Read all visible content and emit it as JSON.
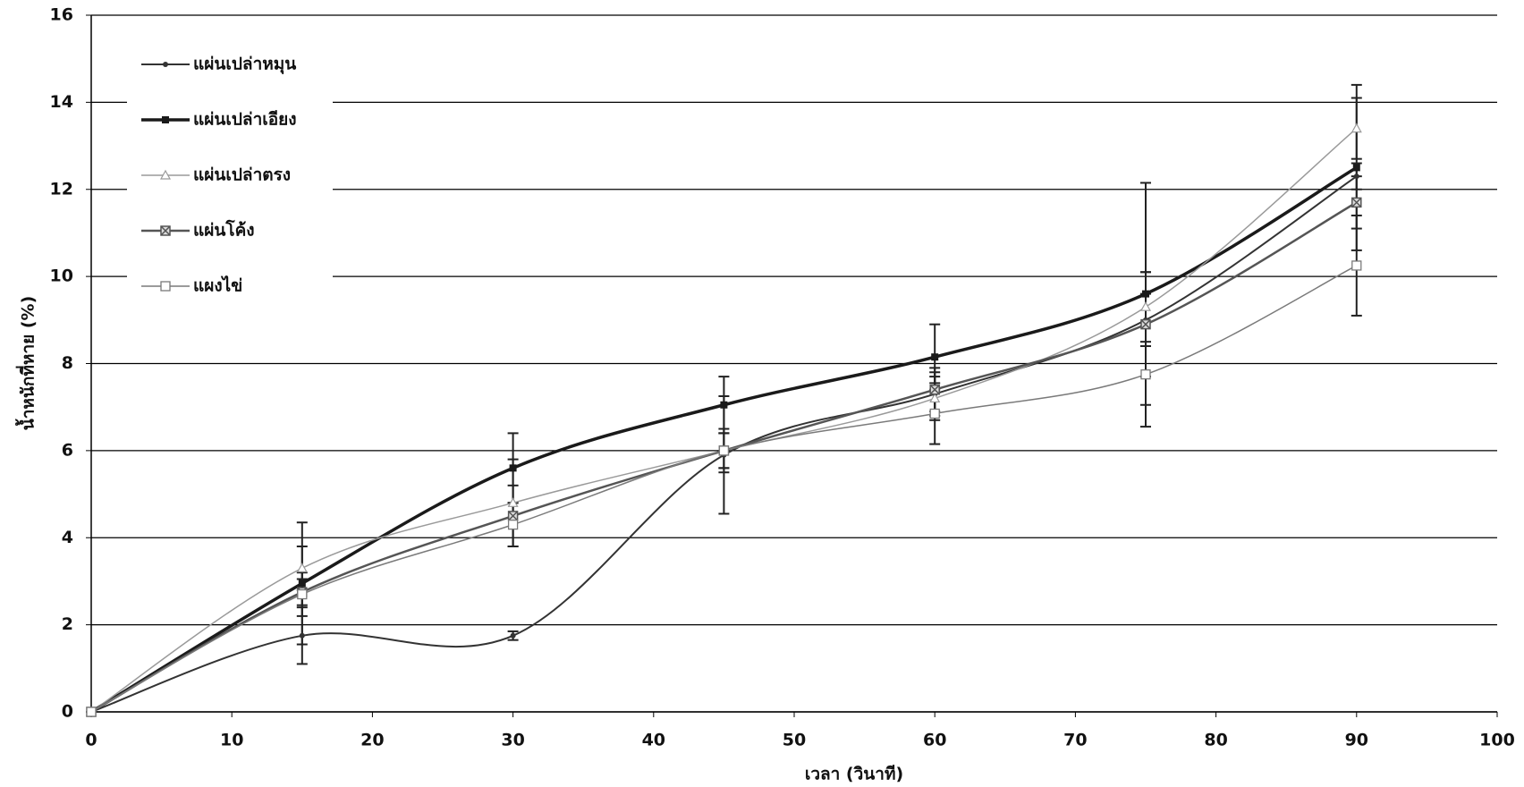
{
  "chart_data": {
    "type": "line",
    "x_label": "เวลา (วินาที)",
    "y_label": "น้ำหนักที่หาย (%)",
    "x": [
      0,
      15,
      30,
      45,
      60,
      75,
      90
    ],
    "xlim": [
      0,
      100
    ],
    "xticks": [
      0,
      10,
      20,
      30,
      40,
      50,
      60,
      70,
      80,
      90,
      100
    ],
    "ylim": [
      0,
      16
    ],
    "yticks": [
      0,
      2,
      4,
      6,
      8,
      10,
      12,
      14,
      16
    ],
    "grid": true,
    "legend": "upper-left",
    "series": [
      {
        "name": "แผ่นเปล่าหมุน",
        "color": "#333333",
        "width": 2,
        "marker": "dot",
        "values": [
          0,
          1.75,
          1.75,
          5.9,
          7.3,
          9.0,
          12.3
        ],
        "errors": [
          0,
          0.65,
          0.1,
          1.35,
          0.5,
          0.6,
          0.3
        ]
      },
      {
        "name": "แผ่นเปล่าเอียง",
        "color": "#1a1a1a",
        "width": 3.5,
        "marker": "square",
        "values": [
          0,
          2.95,
          5.6,
          7.05,
          8.15,
          9.6,
          12.5
        ],
        "errors": [
          0,
          1.4,
          0.8,
          0.65,
          0.75,
          2.55,
          1.9
        ]
      },
      {
        "name": "แผ่นเปล่าตรง",
        "color": "#9a9a9a",
        "width": 1.5,
        "marker": "triangle",
        "values": [
          0,
          3.3,
          4.8,
          6.0,
          7.2,
          9.3,
          13.4
        ],
        "errors": [
          0,
          0.5,
          1.0,
          0.5,
          0.5,
          0.8,
          0.7
        ]
      },
      {
        "name": "แผ่นโค้ง",
        "color": "#555555",
        "width": 2.5,
        "marker": "cross-square",
        "values": [
          0,
          2.75,
          4.5,
          6.0,
          7.4,
          8.9,
          11.7
        ],
        "errors": [
          0,
          0.3,
          0.7,
          0.4,
          0.5,
          1.2,
          0.6
        ]
      },
      {
        "name": "แผงไข่",
        "color": "#7a7a7a",
        "width": 1.5,
        "marker": "open-square",
        "values": [
          0,
          2.7,
          4.3,
          6.0,
          6.85,
          7.75,
          10.25
        ],
        "errors": [
          0,
          0.5,
          0.5,
          0.4,
          0.7,
          1.2,
          1.15
        ]
      }
    ]
  }
}
